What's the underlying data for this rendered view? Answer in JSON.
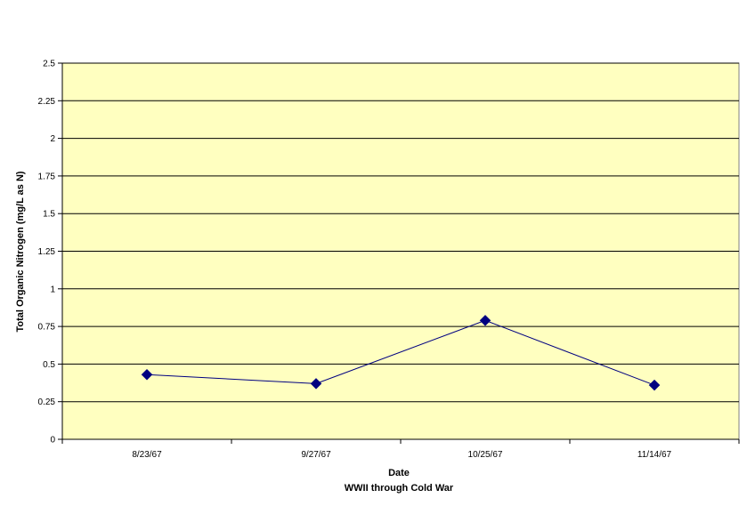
{
  "chart_data": {
    "type": "line",
    "title": "",
    "xlabel": "Date",
    "xlabel_subtitle": "WWII through Cold War",
    "ylabel": "Total Organic Nitrogen (mg/L as N)",
    "categories": [
      "8/23/67",
      "9/27/67",
      "10/25/67",
      "11/14/67"
    ],
    "series": [
      {
        "values": [
          0.43,
          0.37,
          0.79,
          0.36
        ]
      }
    ],
    "ylim": [
      0,
      2.5
    ],
    "yticks": [
      0,
      0.25,
      0.5,
      0.75,
      1,
      1.25,
      1.5,
      1.75,
      2,
      2.25,
      2.5
    ],
    "ytick_labels": [
      "0",
      "0.25",
      "0.5",
      "0.75",
      "1",
      "1.25",
      "1.5",
      "1.75",
      "2",
      "2.25",
      "2.5"
    ],
    "grid": true,
    "legend": "none",
    "colors": {
      "plot_background": "#ffffc0",
      "gridline": "#000000",
      "series_line": "#000080",
      "marker": "#000080"
    }
  }
}
